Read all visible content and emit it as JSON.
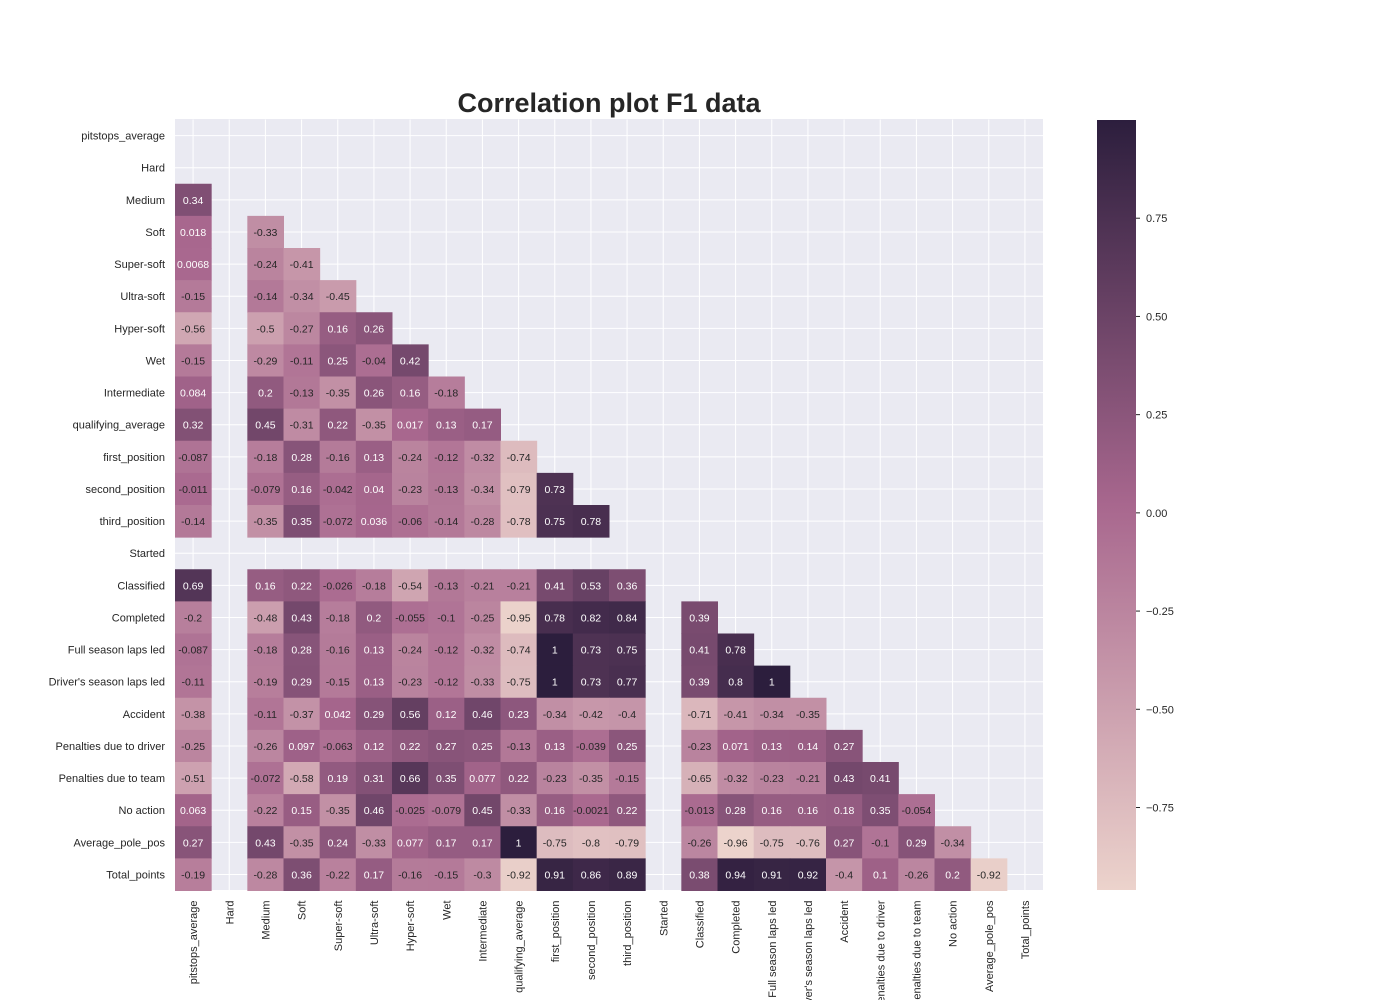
{
  "chart_data": {
    "type": "heatmap",
    "title": "Correlation plot F1 data",
    "labels": [
      "pitstops_average",
      "Hard",
      "Medium",
      "Soft",
      "Super-soft",
      "Ultra-soft",
      "Hyper-soft",
      "Wet",
      "Intermediate",
      "qualifying_average",
      "first_position",
      "second_position",
      "third_position",
      "Started",
      "Classified",
      "Completed",
      "Full season laps led",
      "Driver's season laps led",
      "Accident",
      "Penalties due to driver",
      "Penalties due to team",
      "No action",
      "Average_pole_pos",
      "Total_points"
    ],
    "lower_triangle_only": true,
    "values": [
      [],
      [
        null
      ],
      [
        0.34,
        null
      ],
      [
        0.018,
        null,
        -0.33
      ],
      [
        0.0068,
        null,
        -0.24,
        -0.41
      ],
      [
        -0.15,
        null,
        -0.14,
        -0.34,
        -0.45
      ],
      [
        -0.56,
        null,
        -0.5,
        -0.27,
        0.16,
        0.26
      ],
      [
        -0.15,
        null,
        -0.29,
        -0.11,
        0.25,
        -0.04,
        0.42
      ],
      [
        0.084,
        null,
        0.2,
        -0.13,
        -0.35,
        0.26,
        0.16,
        -0.18
      ],
      [
        0.32,
        null,
        0.45,
        -0.31,
        0.22,
        -0.35,
        0.017,
        0.13,
        0.17
      ],
      [
        -0.087,
        null,
        -0.18,
        0.28,
        -0.16,
        0.13,
        -0.24,
        -0.12,
        -0.32,
        -0.74
      ],
      [
        -0.011,
        null,
        -0.079,
        0.16,
        -0.042,
        0.04,
        -0.23,
        -0.13,
        -0.34,
        -0.79,
        0.73
      ],
      [
        -0.14,
        null,
        -0.35,
        0.35,
        -0.072,
        0.036,
        -0.06,
        -0.14,
        -0.28,
        -0.78,
        0.75,
        0.78
      ],
      [
        null,
        null,
        null,
        null,
        null,
        null,
        null,
        null,
        null,
        null,
        null,
        null,
        null
      ],
      [
        0.69,
        null,
        0.16,
        0.22,
        -0.026,
        -0.18,
        -0.54,
        -0.13,
        -0.21,
        -0.21,
        0.41,
        0.53,
        0.36,
        null
      ],
      [
        -0.2,
        null,
        -0.48,
        0.43,
        -0.18,
        0.2,
        -0.055,
        -0.1,
        -0.25,
        -0.95,
        0.78,
        0.82,
        0.84,
        null,
        0.39
      ],
      [
        -0.087,
        null,
        -0.18,
        0.28,
        -0.16,
        0.13,
        -0.24,
        -0.12,
        -0.32,
        -0.74,
        1,
        0.73,
        0.75,
        null,
        0.41,
        0.78
      ],
      [
        -0.11,
        null,
        -0.19,
        0.29,
        -0.15,
        0.13,
        -0.23,
        -0.12,
        -0.33,
        -0.75,
        1,
        0.73,
        0.77,
        null,
        0.39,
        0.8,
        1
      ],
      [
        -0.38,
        null,
        -0.11,
        -0.37,
        0.042,
        0.29,
        0.56,
        0.12,
        0.46,
        0.23,
        -0.34,
        -0.42,
        -0.4,
        null,
        -0.71,
        -0.41,
        -0.34,
        -0.35
      ],
      [
        -0.25,
        null,
        -0.26,
        0.097,
        -0.063,
        0.12,
        0.22,
        0.27,
        0.25,
        -0.13,
        0.13,
        -0.039,
        0.25,
        null,
        -0.23,
        0.071,
        0.13,
        0.14,
        0.27
      ],
      [
        -0.51,
        null,
        -0.072,
        -0.58,
        0.19,
        0.31,
        0.66,
        0.35,
        0.077,
        0.22,
        -0.23,
        -0.35,
        -0.15,
        null,
        -0.65,
        -0.32,
        -0.23,
        -0.21,
        0.43,
        0.41
      ],
      [
        0.063,
        null,
        -0.22,
        0.15,
        -0.35,
        0.46,
        -0.025,
        -0.079,
        0.45,
        -0.33,
        0.16,
        -0.0021,
        0.22,
        null,
        -0.013,
        0.28,
        0.16,
        0.16,
        0.18,
        0.35,
        -0.054
      ],
      [
        0.27,
        null,
        0.43,
        -0.35,
        0.24,
        -0.33,
        0.077,
        0.17,
        0.17,
        1,
        -0.75,
        -0.8,
        -0.79,
        null,
        -0.26,
        -0.96,
        -0.75,
        -0.76,
        0.27,
        -0.1,
        0.29,
        -0.34
      ],
      [
        -0.19,
        null,
        -0.28,
        0.36,
        -0.22,
        0.17,
        -0.16,
        -0.15,
        -0.3,
        -0.92,
        0.91,
        0.86,
        0.89,
        null,
        0.38,
        0.94,
        0.91,
        0.92,
        -0.4,
        0.1,
        -0.26,
        0.2,
        -0.92
      ]
    ],
    "colorbar": {
      "vmin": -0.96,
      "vmax": 1,
      "ticks": [
        0.75,
        0.5,
        0.25,
        0.0,
        -0.25,
        -0.5,
        -0.75
      ],
      "tick_labels": [
        "0.75",
        "0.50",
        "0.25",
        "0.00",
        "−0.25",
        "−0.50",
        "−0.75"
      ],
      "color_low": "#ecd3cc",
      "color_mid": "#a8678e",
      "color_high": "#2c1e3d"
    },
    "background_color": "#eaeaf2",
    "grid": true
  }
}
